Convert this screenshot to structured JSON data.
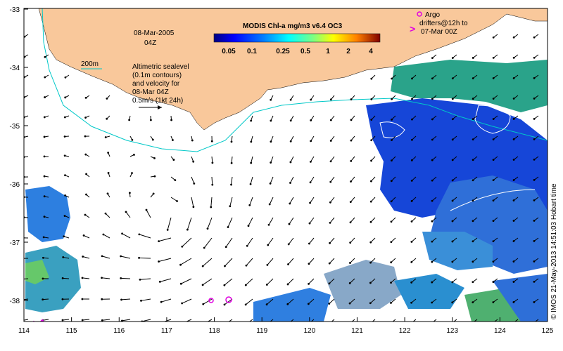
{
  "map": {
    "date": "08-Mar-2005",
    "time": "04Z",
    "colorbar_title": "MODIS Chl-a mg/m3 v6.4 OC3",
    "colorbar_ticks": [
      "0.05",
      "0.1",
      "0.25",
      "0.5",
      "1",
      "2",
      "4"
    ],
    "contour_label": "200m",
    "legend_text": [
      "Altimetric sealevel",
      "(0.1m contours)",
      "and velocity for",
      "08-Mar 04Z",
      "0.5m/s (1kt 24h)"
    ],
    "argo_text": [
      "Argo",
      "drifters@12h to",
      "07-Mar 00Z"
    ],
    "credit": "© IMOS 21-May-2013 14:51:03 Hobart time",
    "x_ticks": [
      "114",
      "115",
      "116",
      "117",
      "118",
      "119",
      "120",
      "121",
      "122",
      "123",
      "124",
      "125"
    ],
    "y_ticks": [
      "-33",
      "-34",
      "-35",
      "-36",
      "-37",
      "-38"
    ],
    "colors": {
      "land": "#f9c89b",
      "isobath": "#00c8c8",
      "argo": "#e000e0",
      "vectors": "#000000"
    }
  }
}
